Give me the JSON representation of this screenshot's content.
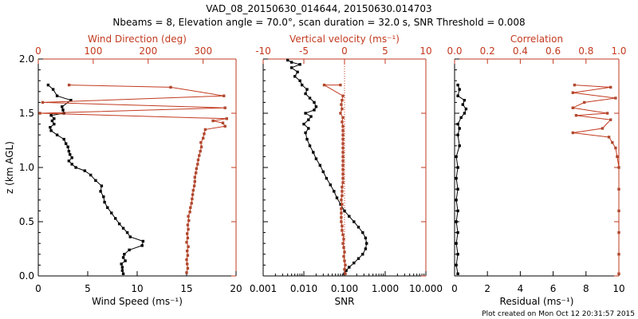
{
  "header": {
    "title_line1": "VAD_08_20150630_014644, 20150630.014703",
    "title_line2": "Nbeams = 8, Elevation angle = 70.0°, scan duration = 32.0 s, SNR Threshold = 0.008"
  },
  "footer": {
    "text": "Plot created on Mon Oct 12 20:31:57 2015"
  },
  "colors": {
    "black": "#000000",
    "red": "#c23a1f",
    "marker_red": "#b0492f",
    "axis": "#000000"
  },
  "chart_data": [
    {
      "panel": "left",
      "type": "line",
      "ylabel": "z (km AGL)",
      "ylim": [
        0,
        2.0
      ],
      "yticks": [
        "0.0",
        "0.5",
        "1.0",
        "1.5",
        "2.0"
      ],
      "xlabel": "Wind Speed (ms⁻¹)",
      "xlim": [
        0,
        20
      ],
      "xticks": [
        "0",
        "5",
        "10",
        "15",
        "20"
      ],
      "top_xlabel": "Wind Direction (deg)",
      "top_xlim": [
        0,
        360
      ],
      "top_xticks": [
        "0",
        "100",
        "200",
        "300"
      ],
      "top_xtick_values": [
        0,
        100,
        200,
        300
      ],
      "series": [
        {
          "name": "Wind Speed",
          "color": "black",
          "points": [
            [
              8.6,
              0.02
            ],
            [
              8.5,
              0.05
            ],
            [
              8.5,
              0.08
            ],
            [
              8.4,
              0.11
            ],
            [
              8.8,
              0.14
            ],
            [
              8.6,
              0.17
            ],
            [
              8.7,
              0.2
            ],
            [
              9.2,
              0.24
            ],
            [
              10.5,
              0.28
            ],
            [
              10.6,
              0.32
            ],
            [
              9.3,
              0.36
            ],
            [
              9.0,
              0.4
            ],
            [
              8.6,
              0.44
            ],
            [
              8.2,
              0.48
            ],
            [
              7.8,
              0.53
            ],
            [
              7.4,
              0.58
            ],
            [
              7.0,
              0.63
            ],
            [
              6.7,
              0.68
            ],
            [
              6.6,
              0.73
            ],
            [
              6.3,
              0.78
            ],
            [
              6.4,
              0.83
            ],
            [
              5.8,
              0.88
            ],
            [
              5.3,
              0.93
            ],
            [
              4.7,
              0.97
            ],
            [
              3.8,
              1.0
            ],
            [
              3.4,
              1.03
            ],
            [
              3.1,
              1.06
            ],
            [
              3.4,
              1.09
            ],
            [
              3.2,
              1.12
            ],
            [
              3.1,
              1.15
            ],
            [
              3.0,
              1.19
            ],
            [
              2.8,
              1.22
            ],
            [
              2.6,
              1.26
            ],
            [
              1.9,
              1.3
            ],
            [
              1.3,
              1.34
            ],
            [
              1.2,
              1.37
            ],
            [
              1.6,
              1.4
            ],
            [
              1.4,
              1.43
            ],
            [
              1.6,
              1.45
            ],
            [
              1.3,
              1.48
            ],
            [
              2.6,
              1.5
            ],
            [
              2.5,
              1.53
            ],
            [
              2.4,
              1.56
            ],
            [
              3.3,
              1.62
            ],
            [
              1.9,
              1.66
            ],
            [
              1.5,
              1.72
            ],
            [
              1.0,
              1.76
            ]
          ]
        },
        {
          "name": "Wind Direction",
          "color": "red",
          "points": [
            [
              270,
              0.03
            ],
            [
              272,
              0.07
            ],
            [
              271,
              0.11
            ],
            [
              270,
              0.15
            ],
            [
              272,
              0.19
            ],
            [
              271,
              0.23
            ],
            [
              273,
              0.27
            ],
            [
              270,
              0.31
            ],
            [
              272,
              0.35
            ],
            [
              271,
              0.39
            ],
            [
              273,
              0.43
            ],
            [
              272,
              0.47
            ],
            [
              274,
              0.51
            ],
            [
              273,
              0.55
            ],
            [
              276,
              0.59
            ],
            [
              277,
              0.63
            ],
            [
              279,
              0.67
            ],
            [
              280,
              0.71
            ],
            [
              281,
              0.75
            ],
            [
              282,
              0.79
            ],
            [
              284,
              0.83
            ],
            [
              285,
              0.87
            ],
            [
              285,
              0.91
            ],
            [
              287,
              0.95
            ],
            [
              288,
              0.99
            ],
            [
              290,
              1.03
            ],
            [
              291,
              1.07
            ],
            [
              293,
              1.11
            ],
            [
              295,
              1.15
            ],
            [
              297,
              1.19
            ],
            [
              296,
              1.23
            ],
            [
              300,
              1.27
            ],
            [
              302,
              1.31
            ],
            [
              304,
              1.35
            ],
            [
              340,
              1.38
            ],
            [
              336,
              1.41
            ],
            [
              318,
              1.43
            ],
            [
              343,
              1.45
            ],
            [
              3,
              1.5
            ],
            [
              340,
              1.55
            ],
            [
              8,
              1.6
            ],
            [
              338,
              1.66
            ],
            [
              241,
              1.74
            ],
            [
              56,
              1.76
            ]
          ]
        }
      ]
    },
    {
      "panel": "middle",
      "type": "line",
      "xlabel": "SNR",
      "xscale": "log",
      "xlim": [
        0.001,
        10.0
      ],
      "xticks": [
        "0.001",
        "0.010",
        "0.100",
        "1.000",
        "10.000"
      ],
      "top_xlabel": "Vertical velocity (ms⁻¹)",
      "top_xlim": [
        -10,
        10
      ],
      "top_xticks": [
        "-10",
        "-5",
        "0",
        "5",
        "10"
      ],
      "top_xtick_values": [
        -10,
        -5,
        0,
        5,
        10
      ],
      "reference_line": 0,
      "series": [
        {
          "name": "SNR",
          "color": "black",
          "points": [
            [
              0.1,
              0.02
            ],
            [
              0.11,
              0.05
            ],
            [
              0.13,
              0.08
            ],
            [
              0.17,
              0.12
            ],
            [
              0.22,
              0.16
            ],
            [
              0.28,
              0.2
            ],
            [
              0.33,
              0.25
            ],
            [
              0.35,
              0.3
            ],
            [
              0.33,
              0.35
            ],
            [
              0.28,
              0.4
            ],
            [
              0.22,
              0.45
            ],
            [
              0.17,
              0.5
            ],
            [
              0.13,
              0.55
            ],
            [
              0.1,
              0.6
            ],
            [
              0.08,
              0.66
            ],
            [
              0.065,
              0.72
            ],
            [
              0.055,
              0.78
            ],
            [
              0.045,
              0.84
            ],
            [
              0.036,
              0.9
            ],
            [
              0.03,
              0.96
            ],
            [
              0.025,
              1.02
            ],
            [
              0.02,
              1.08
            ],
            [
              0.017,
              1.14
            ],
            [
              0.014,
              1.2
            ],
            [
              0.012,
              1.26
            ],
            [
              0.011,
              1.32
            ],
            [
              0.013,
              1.36
            ],
            [
              0.01,
              1.4
            ],
            [
              0.013,
              1.44
            ],
            [
              0.015,
              1.47
            ],
            [
              0.011,
              1.5
            ],
            [
              0.018,
              1.53
            ],
            [
              0.02,
              1.56
            ],
            [
              0.018,
              1.6
            ],
            [
              0.014,
              1.64
            ],
            [
              0.011,
              1.68
            ],
            [
              0.012,
              1.72
            ],
            [
              0.009,
              1.76
            ],
            [
              0.008,
              1.8
            ],
            [
              0.006,
              1.84
            ],
            [
              0.007,
              1.88
            ],
            [
              0.005,
              1.92
            ],
            [
              0.008,
              1.95
            ],
            [
              0.005,
              1.97
            ],
            [
              0.004,
              1.99
            ]
          ]
        },
        {
          "name": "Vertical velocity",
          "color": "red",
          "points": [
            [
              0.1,
              0.02
            ],
            [
              0.0,
              0.06
            ],
            [
              0.1,
              0.1
            ],
            [
              0.0,
              0.14
            ],
            [
              -0.1,
              0.18
            ],
            [
              0.0,
              0.22
            ],
            [
              -0.1,
              0.26
            ],
            [
              -0.2,
              0.3
            ],
            [
              -0.1,
              0.34
            ],
            [
              -0.2,
              0.38
            ],
            [
              -0.3,
              0.42
            ],
            [
              -0.3,
              0.46
            ],
            [
              -0.4,
              0.5
            ],
            [
              -0.4,
              0.54
            ],
            [
              -0.4,
              0.58
            ],
            [
              -0.4,
              0.62
            ],
            [
              -0.3,
              0.66
            ],
            [
              -0.4,
              0.7
            ],
            [
              -0.3,
              0.74
            ],
            [
              -0.3,
              0.78
            ],
            [
              -0.3,
              0.82
            ],
            [
              -0.2,
              0.86
            ],
            [
              -0.2,
              0.9
            ],
            [
              -0.2,
              0.94
            ],
            [
              -0.2,
              0.98
            ],
            [
              -0.2,
              1.02
            ],
            [
              -0.2,
              1.06
            ],
            [
              -0.2,
              1.1
            ],
            [
              -0.2,
              1.14
            ],
            [
              -0.2,
              1.18
            ],
            [
              -0.2,
              1.22
            ],
            [
              -0.2,
              1.26
            ],
            [
              -0.2,
              1.3
            ],
            [
              -0.2,
              1.34
            ],
            [
              -0.2,
              1.38
            ],
            [
              -0.3,
              1.42
            ],
            [
              -0.2,
              1.46
            ],
            [
              -0.5,
              1.5
            ],
            [
              -0.3,
              1.54
            ],
            [
              -0.4,
              1.58
            ],
            [
              -0.3,
              1.62
            ],
            [
              -0.2,
              1.66
            ],
            [
              -2.5,
              1.76
            ],
            [
              -0.5,
              1.76
            ]
          ]
        }
      ]
    },
    {
      "panel": "right",
      "type": "line",
      "xlabel": "Residual (ms⁻¹)",
      "xlim": [
        0,
        10
      ],
      "xticks": [
        "0",
        "2",
        "4",
        "6",
        "8",
        "10"
      ],
      "top_xlabel": "Correlation",
      "top_xlim": [
        0,
        1.0
      ],
      "top_xticks": [
        "0.0",
        "0.2",
        "0.4",
        "0.6",
        "0.8",
        "1.0"
      ],
      "top_xtick_values": [
        0.0,
        0.2,
        0.4,
        0.6,
        0.8,
        1.0
      ],
      "series": [
        {
          "name": "Residual",
          "color": "black",
          "points": [
            [
              0.2,
              0.02
            ],
            [
              0.1,
              0.1
            ],
            [
              0.2,
              0.2
            ],
            [
              0.1,
              0.3
            ],
            [
              0.2,
              0.4
            ],
            [
              0.1,
              0.5
            ],
            [
              0.2,
              0.6
            ],
            [
              0.1,
              0.7
            ],
            [
              0.2,
              0.8
            ],
            [
              0.1,
              0.9
            ],
            [
              0.2,
              1.0
            ],
            [
              0.1,
              1.1
            ],
            [
              0.3,
              1.2
            ],
            [
              0.2,
              1.3
            ],
            [
              0.3,
              1.36
            ],
            [
              0.2,
              1.4
            ],
            [
              0.4,
              1.46
            ],
            [
              0.6,
              1.5
            ],
            [
              0.7,
              1.54
            ],
            [
              0.5,
              1.58
            ],
            [
              0.6,
              1.62
            ],
            [
              0.2,
              1.66
            ],
            [
              0.3,
              1.72
            ],
            [
              0.2,
              1.76
            ]
          ]
        },
        {
          "name": "Correlation",
          "color": "red",
          "points": [
            [
              1.0,
              0.02
            ],
            [
              1.0,
              0.2
            ],
            [
              1.0,
              0.4
            ],
            [
              1.0,
              0.6
            ],
            [
              1.0,
              0.8
            ],
            [
              1.0,
              1.0
            ],
            [
              0.99,
              1.1
            ],
            [
              0.98,
              1.18
            ],
            [
              0.96,
              1.23
            ],
            [
              0.94,
              1.28
            ],
            [
              0.72,
              1.32
            ],
            [
              0.9,
              1.36
            ],
            [
              0.95,
              1.44
            ],
            [
              0.74,
              1.48
            ],
            [
              0.93,
              1.5
            ],
            [
              0.72,
              1.55
            ],
            [
              0.79,
              1.6
            ],
            [
              0.98,
              1.64
            ],
            [
              0.72,
              1.69
            ],
            [
              0.95,
              1.74
            ],
            [
              0.73,
              1.76
            ]
          ]
        }
      ]
    }
  ]
}
